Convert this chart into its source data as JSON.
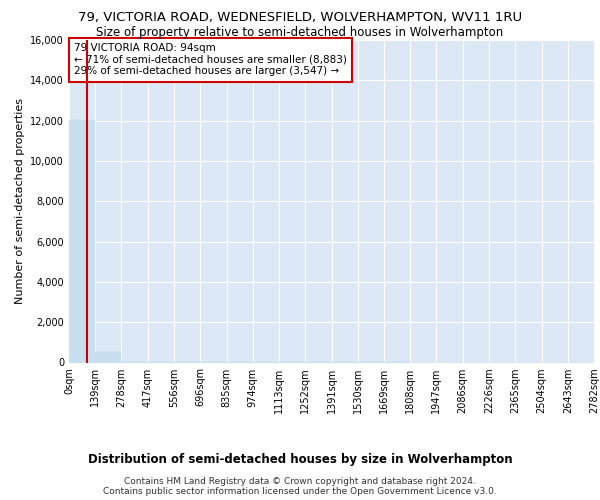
{
  "title": "79, VICTORIA ROAD, WEDNESFIELD, WOLVERHAMPTON, WV11 1RU",
  "subtitle": "Size of property relative to semi-detached houses in Wolverhampton",
  "xlabel_dist": "Distribution of semi-detached houses by size in Wolverhampton",
  "ylabel": "Number of semi-detached properties",
  "footer1": "Contains HM Land Registry data © Crown copyright and database right 2024.",
  "footer2": "Contains public sector information licensed under the Open Government Licence v3.0.",
  "annotation_line1": "79 VICTORIA ROAD: 94sqm",
  "annotation_line2": "← 71% of semi-detached houses are smaller (8,883)",
  "annotation_line3": "29% of semi-detached houses are larger (3,547) →",
  "property_size": 94,
  "bin_width": 139,
  "bar_values": [
    12037,
    512,
    42,
    18,
    12,
    8,
    5,
    4,
    2,
    2,
    1,
    1,
    1,
    0,
    0,
    0,
    0,
    0,
    0,
    0
  ],
  "bin_edges": [
    0,
    139,
    278,
    417,
    556,
    696,
    835,
    974,
    1113,
    1252,
    1391,
    1530,
    1669,
    1808,
    1947,
    2086,
    2226,
    2365,
    2504,
    2643,
    2782
  ],
  "x_tick_labels": [
    "0sqm",
    "139sqm",
    "278sqm",
    "417sqm",
    "556sqm",
    "696sqm",
    "835sqm",
    "974sqm",
    "1113sqm",
    "1252sqm",
    "1391sqm",
    "1530sqm",
    "1669sqm",
    "1808sqm",
    "1947sqm",
    "2086sqm",
    "2226sqm",
    "2365sqm",
    "2504sqm",
    "2643sqm",
    "2782sqm"
  ],
  "ylim": [
    0,
    16000
  ],
  "yticks": [
    0,
    2000,
    4000,
    6000,
    8000,
    10000,
    12000,
    14000,
    16000
  ],
  "bar_color": "#c8dff0",
  "bar_edge_color": "#c8dff0",
  "marker_color": "#cc0000",
  "annotation_box_color": "#cc0000",
  "bg_color": "#dce8f5",
  "grid_color": "#ffffff",
  "title_fontsize": 9.5,
  "subtitle_fontsize": 8.5,
  "axis_label_fontsize": 8,
  "tick_fontsize": 7,
  "annotation_fontsize": 7.5,
  "footer_fontsize": 6.5
}
